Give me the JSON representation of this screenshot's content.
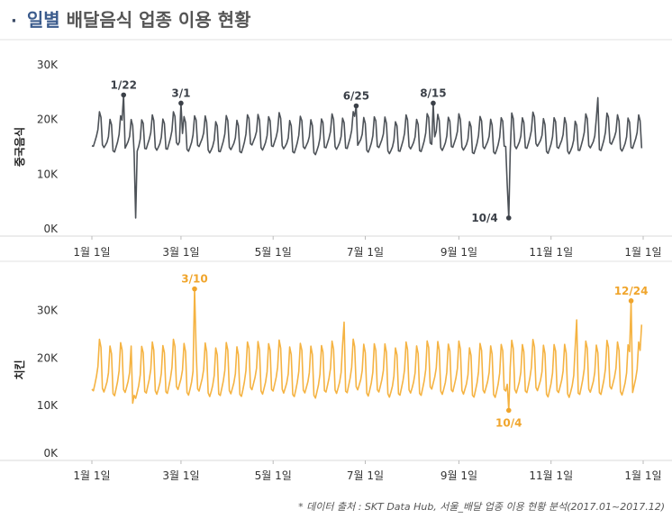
{
  "title": {
    "dot": "·",
    "highlight": "일별",
    "rest": "배달음식 업종 이용 현황"
  },
  "source": "* 데이터 출처 : SKT Data Hub, 서울_배달 업종 이용 현황 분석(2017.01~2017.12)",
  "chart_data": [
    {
      "type": "line",
      "ylabel": "중국음식",
      "color": "#4d5258",
      "annotation_color": "#3b4048",
      "ylim": [
        0,
        30000
      ],
      "yticks": [
        0,
        10000,
        20000,
        30000
      ],
      "ytick_labels": [
        "0K",
        "10K",
        "20K",
        "30K"
      ],
      "xlim": [
        "2017-01-01",
        "2018-01-01"
      ],
      "xticks": [
        "2017-01-01",
        "2017-03-01",
        "2017-05-01",
        "2017-07-01",
        "2017-09-01",
        "2017-11-01",
        "2018-01-01"
      ],
      "xtick_labels": [
        "1월 1일",
        "3월 1일",
        "5월 1일",
        "7월 1일",
        "9월 1일",
        "11월 1일",
        "1월 1일"
      ],
      "base_min": 14500,
      "base_peak": 20500,
      "peak_weekday": 5,
      "points": [
        {
          "x": "2017-01-22",
          "y": 24500,
          "label": "1/22"
        },
        {
          "x": "2017-01-30",
          "y": 2000
        },
        {
          "x": "2017-03-01",
          "y": 23000,
          "label": "3/1"
        },
        {
          "x": "2017-06-25",
          "y": 22500,
          "label": "6/25"
        },
        {
          "x": "2017-08-15",
          "y": 23000,
          "label": "8/15"
        },
        {
          "x": "2017-10-04",
          "y": 2000,
          "label": "10/4"
        },
        {
          "x": "2017-10-03",
          "y": 8000
        },
        {
          "x": "2017-10-05",
          "y": 14000
        },
        {
          "x": "2017-12-02",
          "y": 24000
        }
      ]
    },
    {
      "type": "line",
      "ylabel": "치킨",
      "color": "#f5b342",
      "annotation_color": "#f0a52c",
      "ylim": [
        0,
        35000
      ],
      "yticks": [
        0,
        10000,
        20000,
        30000
      ],
      "ytick_labels": [
        "0K",
        "10K",
        "20K",
        "30K"
      ],
      "xlim": [
        "2017-01-01",
        "2018-01-01"
      ],
      "xticks": [
        "2017-01-01",
        "2017-03-01",
        "2017-05-01",
        "2017-07-01",
        "2017-09-01",
        "2017-11-01",
        "2018-01-01"
      ],
      "xtick_labels": [
        "1월 1일",
        "3월 1일",
        "5월 1일",
        "7월 1일",
        "9월 1일",
        "11월 1일",
        "1월 1일"
      ],
      "base_min": 12500,
      "base_peak": 23000,
      "peak_weekday": 5,
      "points": [
        {
          "x": "2017-01-28",
          "y": 10500
        },
        {
          "x": "2017-03-10",
          "y": 34500,
          "label": "3/10"
        },
        {
          "x": "2017-06-17",
          "y": 27500
        },
        {
          "x": "2017-10-04",
          "y": 9000,
          "label": "10/4"
        },
        {
          "x": "2017-11-18",
          "y": 28000
        },
        {
          "x": "2017-12-24",
          "y": 32000,
          "label": "12/24"
        },
        {
          "x": "2017-12-31",
          "y": 27000
        }
      ]
    }
  ]
}
